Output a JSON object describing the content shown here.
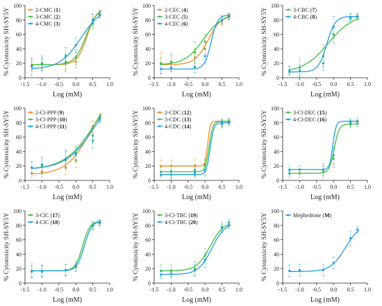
{
  "figure": {
    "colors": {
      "orange": "#f08a24",
      "green": "#3cbf3c",
      "blue": "#1f9fe0"
    }
  },
  "chart_data": [
    {
      "id": "p1",
      "type": "line",
      "xlabel": "Log (mM)",
      "ylabel": "% Cytotoxicity SH-SY5Y",
      "xlim": [
        -1.5,
        1.0
      ],
      "ylim": [
        0,
        100
      ],
      "xticks": [
        "-1.5",
        "-1.0",
        "-0.5",
        "0.0",
        "0.5",
        "1.0"
      ],
      "yticks": [
        "0",
        "20",
        "40",
        "60",
        "80",
        "100"
      ],
      "legend_position": "top-left",
      "series": [
        {
          "name": "2-CMC",
          "num": "1",
          "color": "orange",
          "bottom": 18,
          "top": 97,
          "ec50": 0.33,
          "hill": 3.0,
          "x": [
            -1.3,
            -1.0,
            -0.3,
            0.0,
            0.5,
            0.7
          ],
          "y": [
            18,
            18,
            20,
            22,
            80,
            88
          ],
          "err": [
            8,
            10,
            12,
            8,
            8,
            5
          ]
        },
        {
          "name": "3-CMC",
          "num": "2",
          "color": "green",
          "bottom": 18,
          "top": 97,
          "ec50": 0.3,
          "hill": 2.6,
          "x": [
            -1.3,
            -1.0,
            -0.3,
            0.0,
            0.5,
            0.7
          ],
          "y": [
            17,
            19,
            22,
            28,
            75,
            87
          ],
          "err": [
            6,
            7,
            10,
            10,
            7,
            4
          ]
        },
        {
          "name": "4-CMC",
          "num": "3",
          "color": "blue",
          "bottom": 12,
          "top": 98,
          "ec50": 0.15,
          "hill": 1.4,
          "x": [
            -1.3,
            -1.0,
            -0.3,
            0.0,
            0.5,
            0.7
          ],
          "y": [
            15,
            20,
            30,
            45,
            80,
            88
          ],
          "err": [
            12,
            10,
            12,
            10,
            8,
            5
          ]
        }
      ]
    },
    {
      "id": "p2",
      "type": "line",
      "xlabel": "Log (mM)",
      "ylabel": "% Cytotoxicity SH-SY5Y",
      "xlim": [
        -1.5,
        1.0
      ],
      "ylim": [
        0,
        100
      ],
      "xticks": [
        "-1.5",
        "-1.0",
        "-0.5",
        "0.0",
        "0.5",
        "1.0"
      ],
      "yticks": [
        "0",
        "20",
        "40",
        "60",
        "80",
        "100"
      ],
      "legend_position": "top-left",
      "series": [
        {
          "name": "2-CEC",
          "num": "4",
          "color": "orange",
          "bottom": 18,
          "top": 88,
          "ec50": 0.1,
          "hill": 2.2,
          "x": [
            -1.3,
            -1.0,
            -0.3,
            0.0,
            0.5,
            0.7
          ],
          "y": [
            20,
            22,
            28,
            40,
            78,
            84
          ],
          "err": [
            15,
            12,
            12,
            10,
            6,
            4
          ]
        },
        {
          "name": "3-CEC",
          "num": "5",
          "color": "green",
          "bottom": 18,
          "top": 88,
          "ec50": -0.05,
          "hill": 1.6,
          "x": [
            -1.3,
            -1.0,
            -0.3,
            0.0,
            0.5,
            0.7
          ],
          "y": [
            20,
            22,
            35,
            50,
            80,
            85
          ],
          "err": [
            8,
            10,
            15,
            10,
            6,
            4
          ]
        },
        {
          "name": "4-CEC",
          "num": "6",
          "color": "blue",
          "bottom": 12,
          "top": 87,
          "ec50": 0.18,
          "hill": 4.5,
          "x": [
            -1.3,
            -1.0,
            -0.3,
            0.0,
            0.5,
            0.7
          ],
          "y": [
            12,
            14,
            15,
            30,
            80,
            85
          ],
          "err": [
            6,
            6,
            8,
            10,
            5,
            4
          ]
        }
      ]
    },
    {
      "id": "p3",
      "type": "line",
      "xlabel": "Log (mM)",
      "ylabel": "% Cytotoxicity SH-SY5Y",
      "xlim": [
        -1.5,
        1.0
      ],
      "ylim": [
        0,
        100
      ],
      "xticks": [
        "-1.5",
        "-1.0",
        "-0.5",
        "0.0",
        "0.5",
        "1.0"
      ],
      "yticks": [
        "0",
        "20",
        "40",
        "60",
        "80",
        "100"
      ],
      "legend_position": "top-left",
      "series": [
        {
          "name": "3-CBC",
          "num": "7",
          "color": "green",
          "bottom": 8,
          "top": 88,
          "ec50": -0.15,
          "hill": 1.2,
          "x": [
            -1.3,
            -1.0,
            -0.3,
            0.0,
            0.5,
            0.7
          ],
          "y": [
            8,
            14,
            30,
            60,
            82,
            84
          ],
          "err": [
            8,
            12,
            15,
            12,
            6,
            4
          ]
        },
        {
          "name": "4-CBC",
          "num": "8",
          "color": "blue",
          "bottom": 8,
          "top": 85,
          "ec50": -0.2,
          "hill": 3.5,
          "x": [
            -1.3,
            -1.0,
            -0.3,
            0.0,
            0.5,
            0.7
          ],
          "y": [
            10,
            10,
            20,
            70,
            84,
            85
          ],
          "err": [
            6,
            8,
            10,
            15,
            5,
            4
          ]
        }
      ]
    },
    {
      "id": "p4",
      "type": "line",
      "xlabel": "Log (mM)",
      "ylabel": "% Cytotoxicity SH-SY5Y",
      "xlim": [
        -1.5,
        1.0
      ],
      "ylim": [
        0,
        100
      ],
      "xticks": [
        "-1.5",
        "-1.0",
        "-0.5",
        "0.0",
        "0.5",
        "1.0"
      ],
      "yticks": [
        "0",
        "20",
        "40",
        "60",
        "80",
        "100"
      ],
      "legend_position": "top-left",
      "series": [
        {
          "name": "2-Cl-PPP",
          "num": "9",
          "color": "orange",
          "bottom": 8,
          "top": 130,
          "ec50": 0.45,
          "hill": 1.2,
          "x": [
            -1.3,
            -1.0,
            -0.3,
            0.0,
            0.5,
            0.7
          ],
          "y": [
            10,
            12,
            18,
            28,
            75,
            87
          ],
          "err": [
            6,
            8,
            10,
            10,
            8,
            4
          ]
        },
        {
          "name": "3-Cl-PPP",
          "num": "10",
          "color": "green",
          "bottom": 15,
          "top": 140,
          "ec50": 0.55,
          "hill": 1.0,
          "x": [
            -1.3,
            -1.0,
            -0.3,
            0.0,
            0.5,
            0.7
          ],
          "y": [
            18,
            20,
            28,
            38,
            62,
            86
          ],
          "err": [
            8,
            12,
            12,
            10,
            10,
            5
          ]
        },
        {
          "name": "4-Cl-PPP",
          "num": "11",
          "color": "blue",
          "bottom": 15,
          "top": 140,
          "ec50": 0.6,
          "hill": 1.0,
          "x": [
            -1.3,
            -1.0,
            -0.3,
            0.0,
            0.5,
            0.7
          ],
          "y": [
            18,
            22,
            30,
            36,
            55,
            84
          ],
          "err": [
            8,
            10,
            12,
            10,
            10,
            5
          ]
        }
      ]
    },
    {
      "id": "p5",
      "type": "line",
      "xlabel": "Log (mM)",
      "ylabel": "% Cytotoxicity SH-SY5Y",
      "xlim": [
        -1.5,
        1.0
      ],
      "ylim": [
        0,
        100
      ],
      "xticks": [
        "-1.5",
        "-1.0",
        "-0.5",
        "0.0",
        "0.5",
        "1.0"
      ],
      "yticks": [
        "0",
        "20",
        "40",
        "60",
        "80",
        "100"
      ],
      "legend_position": "top-left",
      "series": [
        {
          "name": "2-CDC",
          "num": "12",
          "color": "orange",
          "bottom": 20,
          "top": 82,
          "ec50": 0.08,
          "hill": 12,
          "x": [
            -1.3,
            -1.0,
            -0.3,
            0.0,
            0.5,
            0.7
          ],
          "y": [
            20,
            20,
            20,
            22,
            80,
            82
          ],
          "err": [
            8,
            8,
            10,
            8,
            5,
            4
          ]
        },
        {
          "name": "3-CDC",
          "num": "13",
          "color": "green",
          "bottom": 12,
          "top": 82,
          "ec50": 0.12,
          "hill": 8,
          "x": [
            -1.3,
            -1.0,
            -0.3,
            0.0,
            0.5,
            0.7
          ],
          "y": [
            12,
            12,
            14,
            20,
            80,
            82
          ],
          "err": [
            6,
            8,
            8,
            8,
            5,
            4
          ]
        },
        {
          "name": "4-CDC",
          "num": "14",
          "color": "blue",
          "bottom": 8,
          "top": 80,
          "ec50": 0.15,
          "hill": 8,
          "x": [
            -1.3,
            -1.0,
            -0.3,
            0.0,
            0.5,
            0.7
          ],
          "y": [
            8,
            8,
            10,
            14,
            78,
            80
          ],
          "err": [
            4,
            6,
            6,
            8,
            5,
            4
          ]
        }
      ]
    },
    {
      "id": "p6",
      "type": "line",
      "xlabel": "Log (mM)",
      "ylabel": "% Cytotoxicity SH-SY5Y",
      "xlim": [
        -1.5,
        1.0
      ],
      "ylim": [
        0,
        100
      ],
      "xticks": [
        "-1.5",
        "-1.0",
        "-0.5",
        "0.0",
        "0.5",
        "1.0"
      ],
      "yticks": [
        "0",
        "20",
        "40",
        "60",
        "80",
        "100"
      ],
      "legend_position": "top-left",
      "series": [
        {
          "name": "3-Cl-DEC",
          "num": "15",
          "color": "green",
          "bottom": 10,
          "top": 78,
          "ec50": 0.02,
          "hill": 6,
          "x": [
            -1.3,
            -1.0,
            -0.3,
            0.0,
            0.5,
            0.7
          ],
          "y": [
            10,
            10,
            12,
            30,
            78,
            79
          ],
          "err": [
            6,
            6,
            8,
            12,
            5,
            4
          ]
        },
        {
          "name": "4-Cl-DEC",
          "num": "16",
          "color": "blue",
          "bottom": 15,
          "top": 82,
          "ec50": -0.02,
          "hill": 9,
          "x": [
            -1.3,
            -1.0,
            -0.3,
            0.0,
            0.5,
            0.7
          ],
          "y": [
            14,
            15,
            15,
            35,
            80,
            82
          ],
          "err": [
            6,
            6,
            8,
            12,
            5,
            4
          ]
        }
      ]
    },
    {
      "id": "p7",
      "type": "line",
      "xlabel": "Log (mM)",
      "ylabel": "% Cytotoxicity SH-SY5Y",
      "xlim": [
        -1.5,
        1.0
      ],
      "ylim": [
        0,
        100
      ],
      "xticks": [
        "-1.5",
        "-1.0",
        "-0.5",
        "0.0",
        "0.5",
        "1.0"
      ],
      "yticks": [
        "0",
        "20",
        "40",
        "60",
        "80",
        "100"
      ],
      "legend_position": "top-left",
      "series": [
        {
          "name": "3-ClC",
          "num": "17",
          "color": "green",
          "bottom": 17,
          "top": 86,
          "ec50": 0.2,
          "hill": 4,
          "x": [
            -1.3,
            -1.0,
            -0.3,
            0.0,
            0.5,
            0.7
          ],
          "y": [
            17,
            17,
            18,
            22,
            80,
            84
          ],
          "err": [
            10,
            8,
            8,
            6,
            5,
            4
          ]
        },
        {
          "name": "4-ClC",
          "num": "18",
          "color": "blue",
          "bottom": 17,
          "top": 86,
          "ec50": 0.25,
          "hill": 4,
          "x": [
            -1.3,
            -1.0,
            -0.3,
            0.0,
            0.5,
            0.7
          ],
          "y": [
            16,
            16,
            18,
            24,
            79,
            83
          ],
          "err": [
            8,
            8,
            8,
            6,
            5,
            4
          ]
        }
      ]
    },
    {
      "id": "p8",
      "type": "line",
      "xlabel": "Log (mM)",
      "ylabel": "% Cytotoxicity SH-SY5Y",
      "xlim": [
        -1.5,
        1.0
      ],
      "ylim": [
        0,
        100
      ],
      "xticks": [
        "-1.5",
        "-1.0",
        "-0.5",
        "0.0",
        "0.5",
        "1.0"
      ],
      "yticks": [
        "0",
        "20",
        "40",
        "60",
        "80",
        "100"
      ],
      "legend_position": "top-left",
      "series": [
        {
          "name": "3-Cl-TBC",
          "num": "19",
          "color": "green",
          "bottom": 17,
          "top": 85,
          "ec50": 0.15,
          "hill": 2.2,
          "x": [
            -1.3,
            -1.0,
            -0.3,
            0.0,
            0.5,
            0.7
          ],
          "y": [
            17,
            17,
            20,
            38,
            78,
            84
          ],
          "err": [
            8,
            8,
            10,
            10,
            6,
            4
          ]
        },
        {
          "name": "4-Cl-TBC",
          "num": "20",
          "color": "blue",
          "bottom": 12,
          "top": 84,
          "ec50": 0.2,
          "hill": 2.2,
          "x": [
            -1.3,
            -1.0,
            -0.3,
            0.0,
            0.5,
            0.7
          ],
          "y": [
            12,
            13,
            18,
            32,
            76,
            80
          ],
          "err": [
            6,
            6,
            8,
            10,
            6,
            4
          ]
        }
      ]
    },
    {
      "id": "p9",
      "type": "line",
      "xlabel": "Log (mM)",
      "ylabel": "% Cytotoxicity SH-SY5Y",
      "xlim": [
        -1.5,
        1.0
      ],
      "ylim": [
        0,
        100
      ],
      "xticks": [
        "-1.5",
        "-1.0",
        "-0.5",
        "0.0",
        "0.5",
        "1.0"
      ],
      "yticks": [
        "0",
        "20",
        "40",
        "60",
        "80",
        "100"
      ],
      "legend_position": "top-left",
      "series": [
        {
          "name": "Mephedrone",
          "num": "M",
          "color": "blue",
          "bottom": 16,
          "top": 82,
          "ec50": 0.35,
          "hill": 2.0,
          "x": [
            -1.3,
            -1.0,
            -0.3,
            0.0,
            0.5,
            0.7
          ],
          "y": [
            17,
            18,
            18,
            28,
            62,
            74
          ],
          "err": [
            8,
            8,
            8,
            8,
            10,
            4
          ]
        }
      ]
    }
  ]
}
